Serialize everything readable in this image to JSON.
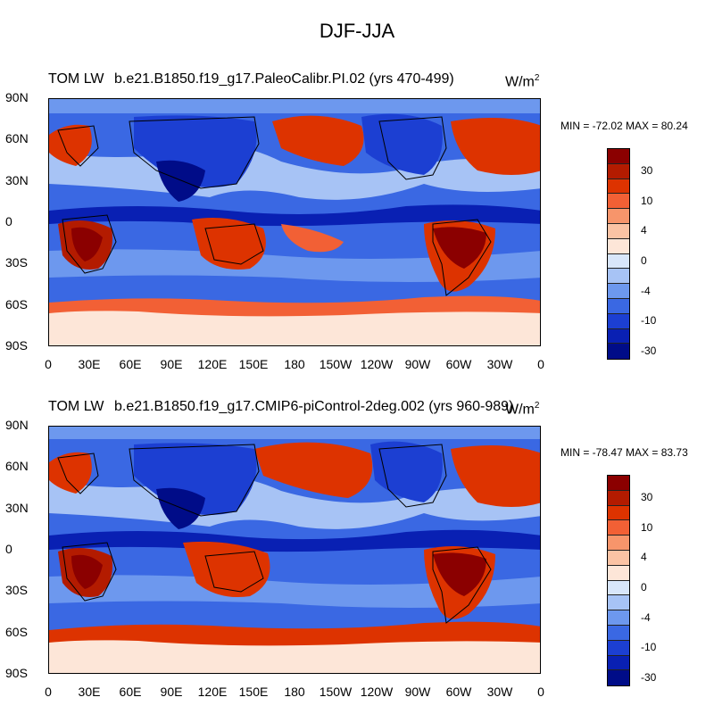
{
  "figure": {
    "title": "DJF-JJA",
    "units_base": "W/m",
    "units_exp": "2"
  },
  "panels": [
    {
      "variable_label": "TOM LW",
      "case_label": "b.e21.B1850.f19_g17.PaleoCalibr.PI.02 (yrs 470-499)",
      "stats": "MIN = -72.02 MAX =  80.24"
    },
    {
      "variable_label": "TOM LW",
      "case_label": "b.e21.B1850.f19_g17.CMIP6-piControl-2deg.002 (yrs 960-989)",
      "stats": "MIN = -78.47 MAX =  83.73"
    }
  ],
  "axes": {
    "lat_ticks": [
      "90N",
      "60N",
      "30N",
      "0",
      "30S",
      "60S",
      "90S"
    ],
    "lon_ticks": [
      "0",
      "30E",
      "60E",
      "90E",
      "120E",
      "150E",
      "180",
      "150W",
      "120W",
      "90W",
      "60W",
      "30W",
      "0"
    ]
  },
  "colorbar": {
    "labels": [
      "30",
      "10",
      "4",
      "0",
      "-4",
      "-10",
      "-30"
    ],
    "colors": [
      "#8b0000",
      "#b31b00",
      "#dd3300",
      "#f26035",
      "#f7956b",
      "#fbc3a4",
      "#fde6d8",
      "#d8e6fa",
      "#a7c3f5",
      "#6d98ee",
      "#3a68e3",
      "#1c3fd2",
      "#0920b3",
      "#000c88"
    ]
  }
}
